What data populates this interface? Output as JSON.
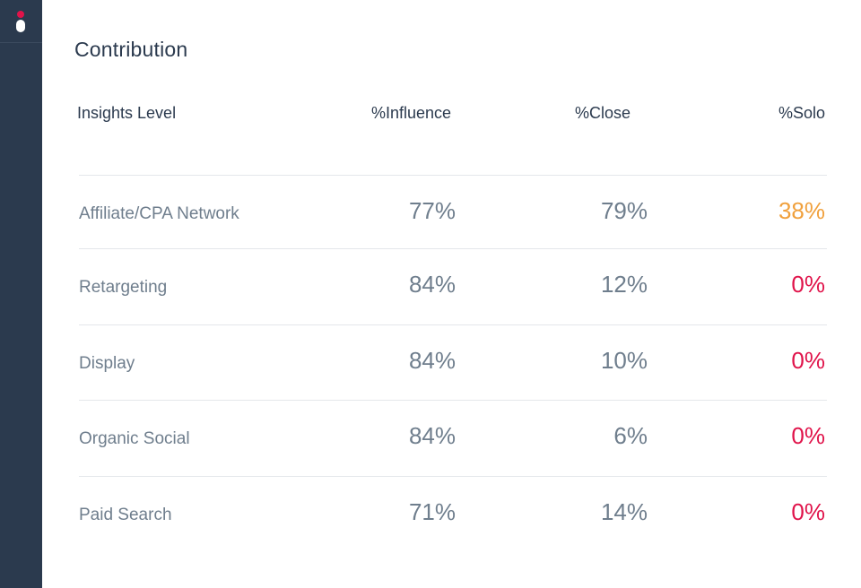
{
  "section": {
    "title": "Contribution"
  },
  "table": {
    "headers": {
      "level": "Insights Level",
      "influence": "%Influence",
      "close": "%Close",
      "solo": "%Solo"
    },
    "rows": [
      {
        "label": "Affiliate/CPA Network",
        "influence": "77%",
        "close": "79%",
        "solo": "38%",
        "solo_status": "warning"
      },
      {
        "label": "Retargeting",
        "influence": "84%",
        "close": "12%",
        "solo": "0%",
        "solo_status": "critical"
      },
      {
        "label": "Display",
        "influence": "84%",
        "close": "10%",
        "solo": "0%",
        "solo_status": "critical"
      },
      {
        "label": "Organic Social",
        "influence": "84%",
        "close": "6%",
        "solo": "0%",
        "solo_status": "critical"
      },
      {
        "label": "Paid Search",
        "influence": "71%",
        "close": "14%",
        "solo": "0%",
        "solo_status": "critical"
      }
    ]
  },
  "colors": {
    "sidebar": "#2b3a4e",
    "text_dark": "#2b3a4e",
    "text_muted": "#6f7e8d",
    "warning": "#f0a03c",
    "critical": "#e0134a",
    "logo_accent": "#e0134a"
  },
  "icons": {
    "logo": "app-logo-icon"
  }
}
